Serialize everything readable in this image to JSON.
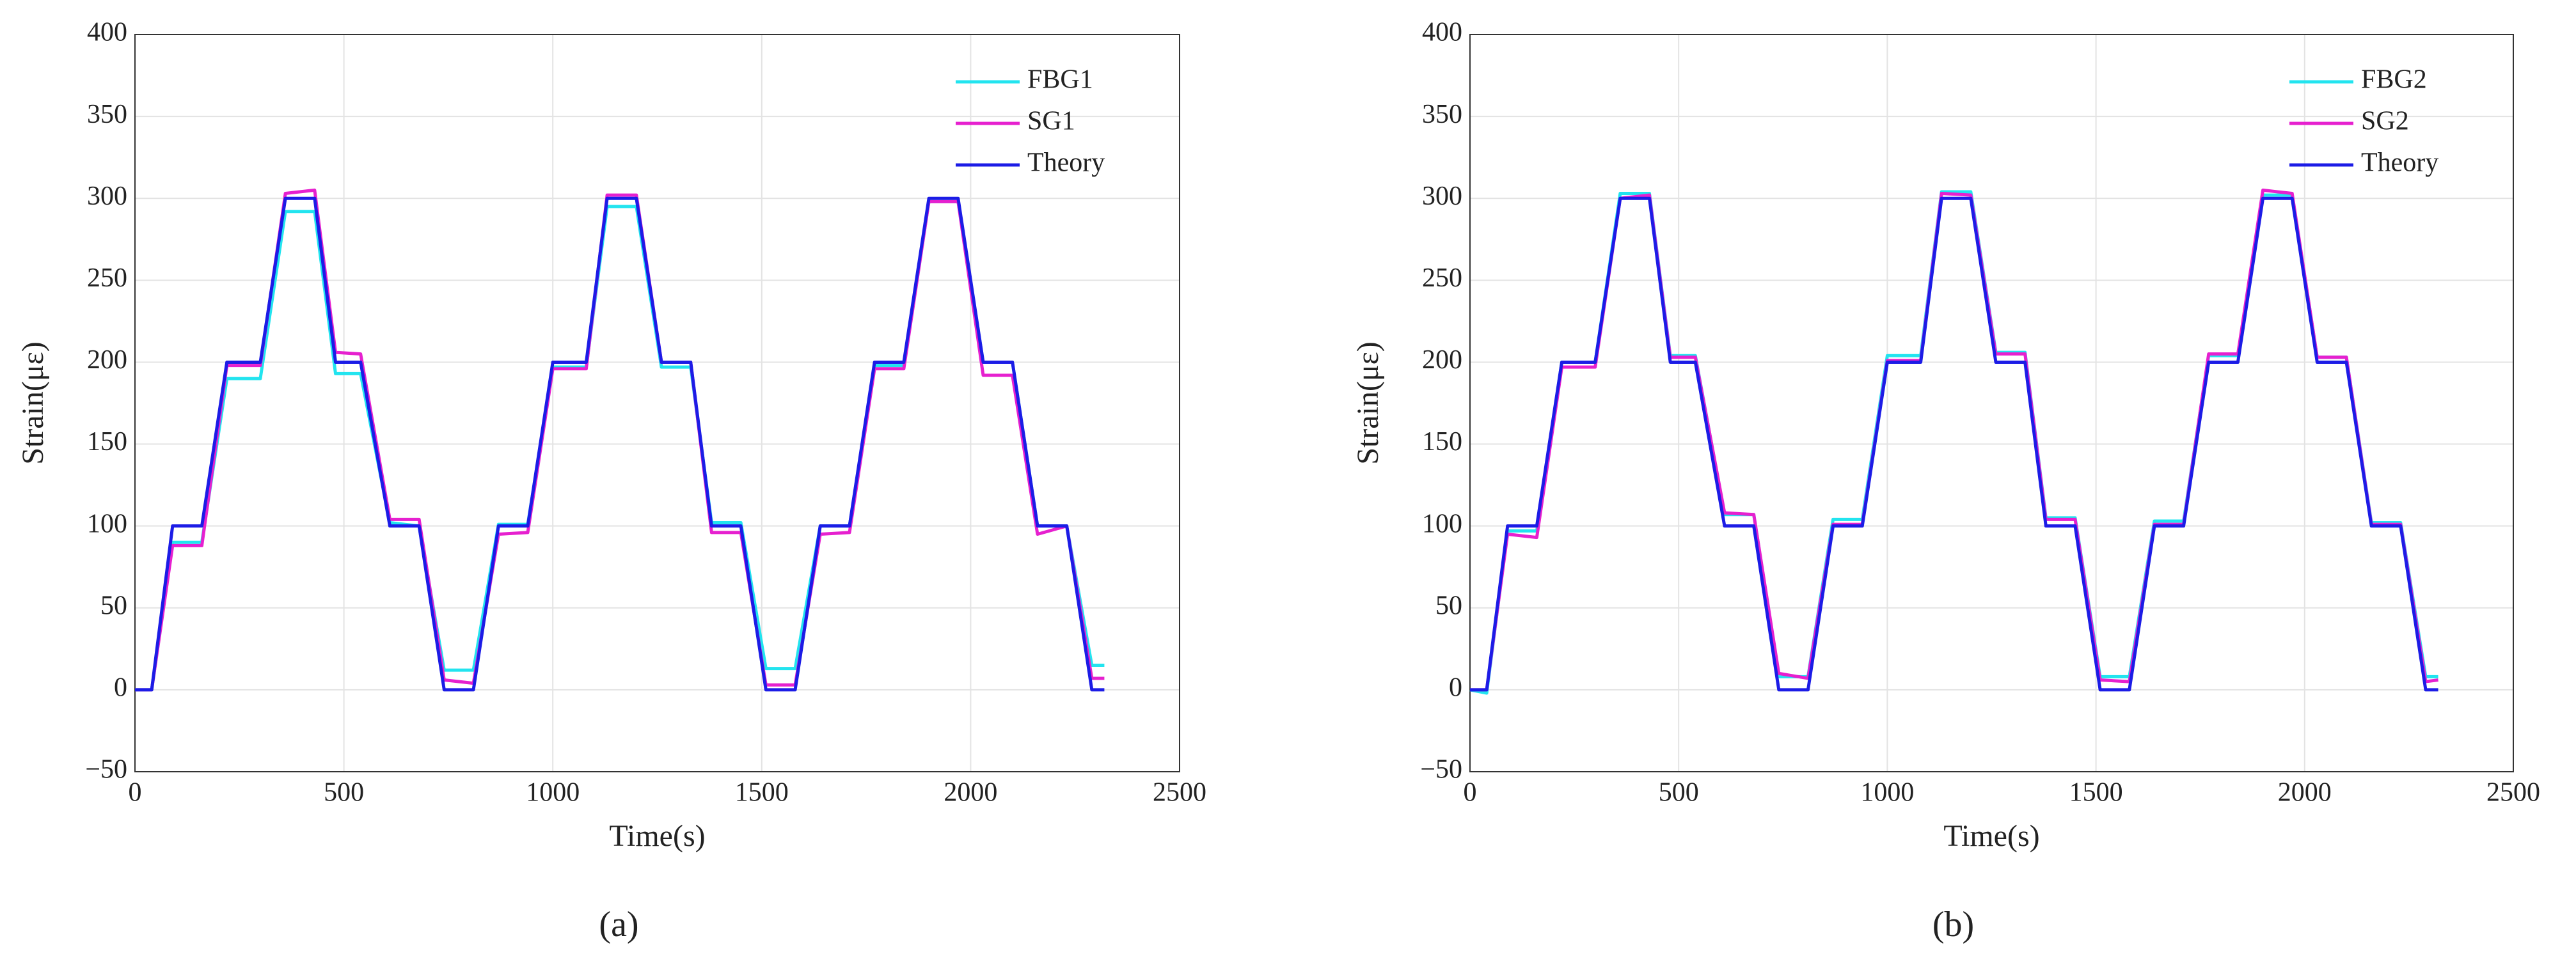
{
  "chart_data": [
    {
      "type": "line",
      "label": "(a)",
      "xlabel": "Time(s)",
      "ylabel": "Strain(με)",
      "xlim": [
        0,
        2500
      ],
      "xticks": [
        0,
        500,
        1000,
        1500,
        2000,
        2500
      ],
      "ylim": [
        -50,
        400
      ],
      "yticks": [
        {
          "value": -50,
          "label": "−50"
        },
        0,
        50,
        100,
        150,
        200,
        250,
        300,
        350,
        400
      ],
      "grid": true,
      "legend": "upper right",
      "x": [
        0,
        40,
        90,
        160,
        220,
        300,
        360,
        430,
        480,
        540,
        610,
        680,
        740,
        810,
        870,
        940,
        1000,
        1080,
        1130,
        1200,
        1260,
        1330,
        1380,
        1450,
        1510,
        1580,
        1640,
        1710,
        1770,
        1840,
        1900,
        1970,
        2030,
        2100,
        2160,
        2230,
        2290,
        2320
      ],
      "series": [
        {
          "name": "FBG1",
          "color": "#22e4ef",
          "values": [
            0,
            0,
            90,
            90,
            190,
            190,
            292,
            292,
            193,
            193,
            102,
            100,
            12,
            12,
            101,
            101,
            197,
            197,
            295,
            295,
            197,
            197,
            102,
            102,
            13,
            13,
            100,
            100,
            198,
            198,
            298,
            298,
            200,
            200,
            100,
            100,
            15,
            15
          ]
        },
        {
          "name": "SG1",
          "color": "#e620cf",
          "values": [
            0,
            0,
            88,
            88,
            198,
            198,
            303,
            305,
            206,
            205,
            104,
            104,
            6,
            4,
            95,
            96,
            196,
            196,
            302,
            302,
            200,
            200,
            96,
            96,
            3,
            3,
            95,
            96,
            196,
            196,
            298,
            298,
            192,
            192,
            95,
            100,
            7,
            7
          ]
        },
        {
          "name": "Theory",
          "color": "#1c1ce6",
          "values": [
            0,
            0,
            100,
            100,
            200,
            200,
            300,
            300,
            200,
            200,
            100,
            100,
            0,
            0,
            100,
            100,
            200,
            200,
            300,
            300,
            200,
            200,
            100,
            100,
            0,
            0,
            100,
            100,
            200,
            200,
            300,
            300,
            200,
            200,
            100,
            100,
            0,
            0
          ]
        }
      ]
    },
    {
      "type": "line",
      "label": "(b)",
      "xlabel": "Time(s)",
      "ylabel": "Strain(με)",
      "xlim": [
        0,
        2500
      ],
      "xticks": [
        0,
        500,
        1000,
        1500,
        2000,
        2500
      ],
      "ylim": [
        -50,
        400
      ],
      "yticks": [
        {
          "value": -50,
          "label": "−50"
        },
        0,
        50,
        100,
        150,
        200,
        250,
        300,
        350,
        400
      ],
      "grid": true,
      "legend": "upper right",
      "x": [
        0,
        40,
        90,
        160,
        220,
        300,
        360,
        430,
        480,
        540,
        610,
        680,
        740,
        810,
        870,
        940,
        1000,
        1080,
        1130,
        1200,
        1260,
        1330,
        1380,
        1450,
        1510,
        1580,
        1640,
        1710,
        1770,
        1840,
        1900,
        1970,
        2030,
        2100,
        2160,
        2230,
        2290,
        2320
      ],
      "series": [
        {
          "name": "FBG2",
          "color": "#22e4ef",
          "values": [
            0,
            -2,
            97,
            97,
            200,
            200,
            303,
            303,
            204,
            204,
            107,
            107,
            8,
            8,
            104,
            104,
            204,
            204,
            304,
            304,
            206,
            206,
            105,
            105,
            8,
            8,
            103,
            103,
            204,
            204,
            302,
            302,
            203,
            203,
            102,
            102,
            8,
            8
          ]
        },
        {
          "name": "SG2",
          "color": "#e620cf",
          "values": [
            0,
            0,
            95,
            93,
            197,
            197,
            300,
            302,
            203,
            203,
            108,
            107,
            10,
            7,
            101,
            101,
            201,
            201,
            303,
            302,
            205,
            205,
            104,
            104,
            6,
            5,
            101,
            101,
            205,
            205,
            305,
            303,
            203,
            203,
            101,
            101,
            5,
            6
          ]
        },
        {
          "name": "Theory",
          "color": "#1c1ce6",
          "values": [
            0,
            0,
            100,
            100,
            200,
            200,
            300,
            300,
            200,
            200,
            100,
            100,
            0,
            0,
            100,
            100,
            200,
            200,
            300,
            300,
            200,
            200,
            100,
            100,
            0,
            0,
            100,
            100,
            200,
            200,
            300,
            300,
            200,
            200,
            100,
            100,
            0,
            0
          ]
        }
      ]
    }
  ]
}
